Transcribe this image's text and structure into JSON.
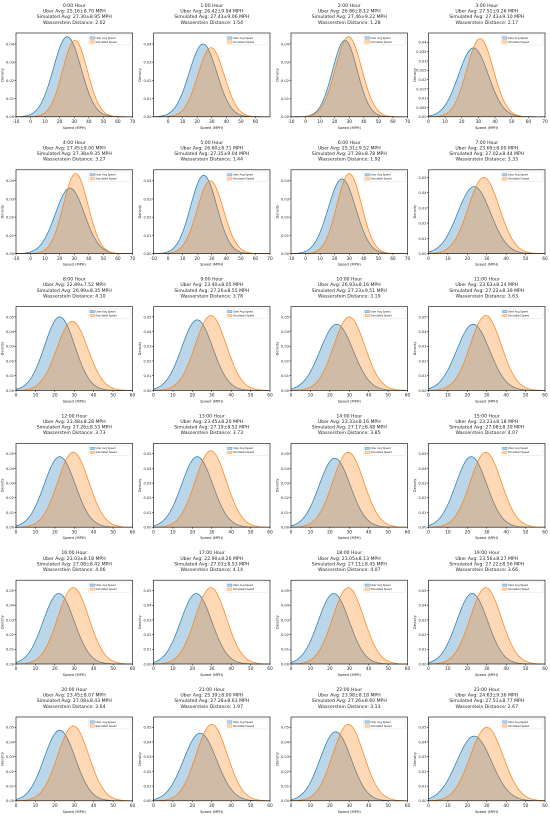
{
  "colors": {
    "uber": "#1f77b4",
    "sim": "#ff7f0e"
  },
  "figure": {
    "ylabel": "Density",
    "xlabel": "Speed (MPH)",
    "legend": [
      "Uber Avg Speed",
      "Simulated Speed"
    ]
  },
  "chart_data": [
    {
      "type": "area",
      "title_lines": [
        "0:00 Hour",
        "Uber Avg: 25.16±8.70 MPH",
        "Simulated Avg: 27.30±8.95 MPH",
        "Wasserstein Distance: 2.02"
      ],
      "xlim": [
        -10,
        70
      ],
      "ylim": [
        0,
        0.046
      ],
      "xticks": [
        -10,
        0,
        10,
        20,
        30,
        40,
        50,
        60,
        70
      ],
      "yticks": [
        0,
        0.01,
        0.02,
        0.03,
        0.04
      ],
      "series": [
        {
          "name": "Uber Avg Speed",
          "mean": 25.2,
          "sd": 9.5,
          "peak": 0.044
        },
        {
          "name": "Simulated Speed",
          "mean": 30.5,
          "sd": 8.5,
          "peak": 0.042
        }
      ]
    },
    {
      "type": "area",
      "title_lines": [
        "1:00 Hour",
        "Uber Avg: 26.42±9.94 MPH",
        "Simulated Avg: 27.43±9.06 MPH",
        "Wasserstein Distance: 1.54"
      ],
      "xlim": [
        -10,
        70
      ],
      "ylim": [
        0,
        0.046
      ],
      "xticks": [
        0,
        10,
        20,
        30,
        40,
        50,
        60
      ],
      "yticks": [
        0,
        0.01,
        0.02,
        0.03,
        0.04
      ],
      "series": [
        {
          "name": "Uber Avg Speed",
          "mean": 24.0,
          "sd": 9.5,
          "peak": 0.04
        },
        {
          "name": "Simulated Speed",
          "mean": 29.5,
          "sd": 9.0,
          "peak": 0.038
        }
      ]
    },
    {
      "type": "area",
      "title_lines": [
        "2:00 Hour",
        "Uber Avg: 26.86±8.12 MPH",
        "Simulated Avg: 27.46±9.22 MPH",
        "Wasserstein Distance: 1.28"
      ],
      "xlim": [
        -10,
        70
      ],
      "ylim": [
        0,
        0.046
      ],
      "xticks": [
        -10,
        0,
        10,
        20,
        30,
        40,
        50,
        60,
        70
      ],
      "yticks": [
        0,
        0.01,
        0.02,
        0.03,
        0.04
      ],
      "series": [
        {
          "name": "Uber Avg Speed",
          "mean": 27.0,
          "sd": 8.5,
          "peak": 0.042
        },
        {
          "name": "Simulated Speed",
          "mean": 29.5,
          "sd": 9.0,
          "peak": 0.044
        }
      ]
    },
    {
      "type": "area",
      "title_lines": [
        "3:00 Hour",
        "Uber Avg: 27.51±9.26 MPH",
        "Simulated Avg: 27.43±9.10 MPH",
        "Wasserstein Distance: 2.17"
      ],
      "xlim": [
        0,
        70
      ],
      "ylim": [
        0,
        0.045
      ],
      "xticks": [
        0,
        10,
        20,
        30,
        40,
        50,
        60,
        70
      ],
      "yticks": [
        0,
        0.005,
        0.01,
        0.015,
        0.02,
        0.025,
        0.03,
        0.035,
        0.04
      ],
      "series": [
        {
          "name": "Uber Avg Speed",
          "mean": 27.0,
          "sd": 9.0,
          "peak": 0.037
        },
        {
          "name": "Simulated Speed",
          "mean": 31.0,
          "sd": 8.0,
          "peak": 0.042
        }
      ]
    },
    {
      "type": "area",
      "title_lines": [
        "4:00 Hour",
        "Uber Avg: 27.45±9.00 MPH",
        "Simulated Avg: 27.38±9.35 MPH",
        "Wasserstein Distance: 3.27"
      ],
      "xlim": [
        -10,
        70
      ],
      "ylim": [
        0,
        0.046
      ],
      "xticks": [
        -10,
        0,
        10,
        20,
        30,
        40,
        50,
        60,
        70
      ],
      "yticks": [
        0,
        0.01,
        0.02,
        0.03,
        0.04
      ],
      "series": [
        {
          "name": "Uber Avg Speed",
          "mean": 27.0,
          "sd": 10.0,
          "peak": 0.036
        },
        {
          "name": "Simulated Speed",
          "mean": 31.0,
          "sd": 8.5,
          "peak": 0.044
        }
      ]
    },
    {
      "type": "area",
      "title_lines": [
        "5:00 Hour",
        "Uber Avg: 26.60±8.71 MPH",
        "Simulated Avg: 27.35±9.04 MPH",
        "Wasserstein Distance: 1.44"
      ],
      "xlim": [
        -10,
        70
      ],
      "ylim": [
        0,
        0.046
      ],
      "xticks": [
        -10,
        0,
        10,
        20,
        30,
        40,
        50,
        60,
        70
      ],
      "yticks": [
        0,
        0.01,
        0.02,
        0.03,
        0.04
      ],
      "series": [
        {
          "name": "Uber Avg Speed",
          "mean": 24.5,
          "sd": 9.0,
          "peak": 0.043
        },
        {
          "name": "Simulated Speed",
          "mean": 29.0,
          "sd": 9.0,
          "peak": 0.04
        }
      ]
    },
    {
      "type": "area",
      "title_lines": [
        "6:00 Hour",
        "Uber Avg: 25.31±9.52 MPH",
        "Simulated Avg: 27.28±8.78 MPH",
        "Wasserstein Distance: 1.92"
      ],
      "xlim": [
        -10,
        70
      ],
      "ylim": [
        0,
        0.046
      ],
      "xticks": [
        -10,
        0,
        10,
        20,
        30,
        40,
        50,
        60,
        70
      ],
      "yticks": [
        0,
        0.01,
        0.02,
        0.03,
        0.04
      ],
      "series": [
        {
          "name": "Uber Avg Speed",
          "mean": 25.0,
          "sd": 9.5,
          "peak": 0.041
        },
        {
          "name": "Simulated Speed",
          "mean": 30.0,
          "sd": 8.5,
          "peak": 0.044
        }
      ]
    },
    {
      "type": "area",
      "title_lines": [
        "7:00 Hour",
        "Uber Avg: 23.69±8.00 MPH",
        "Simulated Avg: 27.02±8.44 MPH",
        "Wasserstein Distance: 3.33"
      ],
      "xlim": [
        0,
        60
      ],
      "ylim": [
        0,
        0.055
      ],
      "xticks": [
        0,
        10,
        20,
        30,
        40,
        50,
        60
      ],
      "yticks": [
        0,
        0.01,
        0.02,
        0.03,
        0.04,
        0.05
      ],
      "series": [
        {
          "name": "Uber Avg Speed",
          "mean": 23.5,
          "sd": 8.5,
          "peak": 0.044
        },
        {
          "name": "Simulated Speed",
          "mean": 28.5,
          "sd": 8.0,
          "peak": 0.05
        }
      ]
    },
    {
      "type": "area",
      "title_lines": [
        "8:00 Hour",
        "Uber Avg: 22.89±7.52 MPH",
        "Simulated Avg: 26.99±8.35 MPH",
        "Wasserstein Distance: 4.10"
      ],
      "xlim": [
        0,
        60
      ],
      "ylim": [
        0,
        0.057
      ],
      "xticks": [
        0,
        10,
        20,
        30,
        40,
        50,
        60
      ],
      "yticks": [
        0,
        0.01,
        0.02,
        0.03,
        0.04,
        0.05
      ],
      "series": [
        {
          "name": "Uber Avg Speed",
          "mean": 22.5,
          "sd": 7.8,
          "peak": 0.05
        },
        {
          "name": "Simulated Speed",
          "mean": 29.0,
          "sd": 8.0,
          "peak": 0.047
        }
      ]
    },
    {
      "type": "area",
      "title_lines": [
        "9:00 Hour",
        "Uber Avg: 23.40±8.05 MPH",
        "Simulated Avg: 27.26±8.55 MPH",
        "Wasserstein Distance: 3.78"
      ],
      "xlim": [
        0,
        60
      ],
      "ylim": [
        0,
        0.057
      ],
      "xticks": [
        0,
        10,
        20,
        30,
        40,
        50,
        60
      ],
      "yticks": [
        0,
        0.01,
        0.02,
        0.03,
        0.04,
        0.05
      ],
      "series": [
        {
          "name": "Uber Avg Speed",
          "mean": 22.5,
          "sd": 8.0,
          "peak": 0.048
        },
        {
          "name": "Simulated Speed",
          "mean": 29.5,
          "sd": 8.0,
          "peak": 0.051
        }
      ]
    },
    {
      "type": "area",
      "title_lines": [
        "10:00 Hour",
        "Uber Avg: 26.93±8.16 MPH",
        "Simulated Avg: 27.23±9.51 MPH",
        "Wasserstein Distance: 3.19"
      ],
      "xlim": [
        0,
        60
      ],
      "ylim": [
        0,
        0.057
      ],
      "xticks": [
        0,
        10,
        20,
        30,
        40,
        50,
        60
      ],
      "yticks": [
        0,
        0.01,
        0.02,
        0.03,
        0.04,
        0.05
      ],
      "series": [
        {
          "name": "Uber Avg Speed",
          "mean": 23.5,
          "sd": 8.5,
          "peak": 0.045
        },
        {
          "name": "Simulated Speed",
          "mean": 30.0,
          "sd": 8.0,
          "peak": 0.05
        }
      ]
    },
    {
      "type": "area",
      "title_lines": [
        "11:00 Hour",
        "Uber Avg: 23.63±8.24 MPH",
        "Simulated Avg: 27.22±8.39 MPH",
        "Wasserstein Distance: 3.63"
      ],
      "xlim": [
        0,
        60
      ],
      "ylim": [
        0,
        0.057
      ],
      "xticks": [
        0,
        10,
        20,
        30,
        40,
        50,
        60
      ],
      "yticks": [
        0,
        0.01,
        0.02,
        0.03,
        0.04,
        0.05
      ],
      "series": [
        {
          "name": "Uber Avg Speed",
          "mean": 23.0,
          "sd": 8.5,
          "peak": 0.045
        },
        {
          "name": "Simulated Speed",
          "mean": 29.5,
          "sd": 8.0,
          "peak": 0.051
        }
      ]
    },
    {
      "type": "area",
      "title_lines": [
        "12:00 Hour",
        "Uber Avg: 23.48±8.28 MPH",
        "Simulated Avg: 27.26±8.53 MPH",
        "Wasserstein Distance: 3.73"
      ],
      "xlim": [
        0,
        60
      ],
      "ylim": [
        0,
        0.057
      ],
      "xticks": [
        0,
        10,
        20,
        30,
        40,
        50,
        60
      ],
      "yticks": [
        0,
        0.01,
        0.02,
        0.03,
        0.04,
        0.05
      ],
      "series": [
        {
          "name": "Uber Avg Speed",
          "mean": 22.5,
          "sd": 8.0,
          "peak": 0.048
        },
        {
          "name": "Simulated Speed",
          "mean": 29.5,
          "sd": 8.0,
          "peak": 0.051
        }
      ]
    },
    {
      "type": "area",
      "title_lines": [
        "13:00 Hour",
        "Uber Avg: 23.45±8.20 MPH",
        "Simulated Avg: 27.19±8.52 MPH",
        "Wasserstein Distance: 3.73"
      ],
      "xlim": [
        0,
        60
      ],
      "ylim": [
        0,
        0.057
      ],
      "xticks": [
        0,
        10,
        20,
        30,
        40,
        50,
        60
      ],
      "yticks": [
        0,
        0.01,
        0.02,
        0.03,
        0.04,
        0.05
      ],
      "series": [
        {
          "name": "Uber Avg Speed",
          "mean": 22.5,
          "sd": 8.0,
          "peak": 0.048
        },
        {
          "name": "Simulated Speed",
          "mean": 29.5,
          "sd": 8.0,
          "peak": 0.052
        }
      ]
    },
    {
      "type": "area",
      "title_lines": [
        "14:00 Hour",
        "Uber Avg: 23.33±8.16 MPH",
        "Simulated Avg: 27.17±8.48 MPH",
        "Wasserstein Distance: 3.85"
      ],
      "xlim": [
        0,
        60
      ],
      "ylim": [
        0,
        0.057
      ],
      "xticks": [
        0,
        10,
        20,
        30,
        40,
        50,
        60
      ],
      "yticks": [
        0,
        0.01,
        0.02,
        0.03,
        0.04,
        0.05
      ],
      "series": [
        {
          "name": "Uber Avg Speed",
          "mean": 22.5,
          "sd": 8.0,
          "peak": 0.047
        },
        {
          "name": "Simulated Speed",
          "mean": 29.5,
          "sd": 8.0,
          "peak": 0.051
        }
      ]
    },
    {
      "type": "area",
      "title_lines": [
        "15:00 Hour",
        "Uber Avg: 23.23±8.18 MPH",
        "Simulated Avg: 27.08±8.39 MPH",
        "Wasserstein Distance: 4.07"
      ],
      "xlim": [
        0,
        60
      ],
      "ylim": [
        0,
        0.057
      ],
      "xticks": [
        0,
        10,
        20,
        30,
        40,
        50,
        60
      ],
      "yticks": [
        0,
        0.01,
        0.02,
        0.03,
        0.04,
        0.05
      ],
      "series": [
        {
          "name": "Uber Avg Speed",
          "mean": 22.0,
          "sd": 8.0,
          "peak": 0.048
        },
        {
          "name": "Simulated Speed",
          "mean": 29.5,
          "sd": 8.0,
          "peak": 0.051
        }
      ]
    },
    {
      "type": "area",
      "title_lines": [
        "16:00 Hour",
        "Uber Avg: 23.03±8.18 MPH",
        "Simulated Avg: 27.08±8.42 MPH",
        "Wasserstein Distance: 4.06"
      ],
      "xlim": [
        0,
        60
      ],
      "ylim": [
        0,
        0.057
      ],
      "xticks": [
        0,
        10,
        20,
        30,
        40,
        50,
        60
      ],
      "yticks": [
        0,
        0.01,
        0.02,
        0.03,
        0.04,
        0.05
      ],
      "series": [
        {
          "name": "Uber Avg Speed",
          "mean": 22.0,
          "sd": 8.0,
          "peak": 0.048
        },
        {
          "name": "Simulated Speed",
          "mean": 29.5,
          "sd": 8.0,
          "peak": 0.052
        }
      ]
    },
    {
      "type": "area",
      "title_lines": [
        "17:00 Hour",
        "Uber Avg: 22.90±8.26 MPH",
        "Simulated Avg: 27.03±8.53 MPH",
        "Wasserstein Distance: 4.14"
      ],
      "xlim": [
        0,
        60
      ],
      "ylim": [
        0,
        0.057
      ],
      "xticks": [
        0,
        10,
        20,
        30,
        40,
        50,
        60
      ],
      "yticks": [
        0,
        0.01,
        0.02,
        0.03,
        0.04,
        0.05
      ],
      "series": [
        {
          "name": "Uber Avg Speed",
          "mean": 22.0,
          "sd": 8.0,
          "peak": 0.048
        },
        {
          "name": "Simulated Speed",
          "mean": 29.5,
          "sd": 8.0,
          "peak": 0.052
        }
      ]
    },
    {
      "type": "area",
      "title_lines": [
        "18:00 Hour",
        "Uber Avg: 23.05±8.13 MPH",
        "Simulated Avg: 27.11±8.45 MPH",
        "Wasserstein Distance: 4.07"
      ],
      "xlim": [
        0,
        60
      ],
      "ylim": [
        0,
        0.057
      ],
      "xticks": [
        0,
        10,
        20,
        30,
        40,
        50,
        60
      ],
      "yticks": [
        0,
        0.01,
        0.02,
        0.03,
        0.04,
        0.05
      ],
      "series": [
        {
          "name": "Uber Avg Speed",
          "mean": 22.0,
          "sd": 8.0,
          "peak": 0.048
        },
        {
          "name": "Simulated Speed",
          "mean": 29.5,
          "sd": 8.0,
          "peak": 0.052
        }
      ]
    },
    {
      "type": "area",
      "title_lines": [
        "19:00 Hour",
        "Uber Avg: 23.56±8.27 MPH",
        "Simulated Avg: 27.22±8.56 MPH",
        "Wasserstein Distance: 3.66"
      ],
      "xlim": [
        0,
        60
      ],
      "ylim": [
        0,
        0.057
      ],
      "xticks": [
        0,
        10,
        20,
        30,
        40,
        50,
        60
      ],
      "yticks": [
        0,
        0.01,
        0.02,
        0.03,
        0.04,
        0.05
      ],
      "series": [
        {
          "name": "Uber Avg Speed",
          "mean": 22.5,
          "sd": 8.0,
          "peak": 0.048
        },
        {
          "name": "Simulated Speed",
          "mean": 29.5,
          "sd": 8.0,
          "peak": 0.052
        }
      ]
    },
    {
      "type": "area",
      "title_lines": [
        "20:00 Hour",
        "Uber Avg: 23.45±8.07 MPH",
        "Simulated Avg: 27.08±8.43 MPH",
        "Wasserstein Distance: 3.64"
      ],
      "xlim": [
        0,
        60
      ],
      "ylim": [
        0,
        0.057
      ],
      "xticks": [
        0,
        10,
        20,
        30,
        40,
        50,
        60
      ],
      "yticks": [
        0,
        0.01,
        0.02,
        0.03,
        0.04,
        0.05
      ],
      "series": [
        {
          "name": "Uber Avg Speed",
          "mean": 22.5,
          "sd": 8.0,
          "peak": 0.048
        },
        {
          "name": "Simulated Speed",
          "mean": 29.5,
          "sd": 8.0,
          "peak": 0.051
        }
      ]
    },
    {
      "type": "area",
      "title_lines": [
        "21:00 Hour",
        "Uber Avg: 25.39±8.00 MPH",
        "Simulated Avg: 27.28±8.63 MPH",
        "Wasserstein Distance: 1.97"
      ],
      "xlim": [
        0,
        60
      ],
      "ylim": [
        0,
        0.057
      ],
      "xticks": [
        0,
        10,
        20,
        30,
        40,
        50,
        60
      ],
      "yticks": [
        0,
        0.01,
        0.02,
        0.03,
        0.04,
        0.05
      ],
      "series": [
        {
          "name": "Uber Avg Speed",
          "mean": 24.0,
          "sd": 8.5,
          "peak": 0.046
        },
        {
          "name": "Simulated Speed",
          "mean": 30.0,
          "sd": 8.0,
          "peak": 0.052
        }
      ]
    },
    {
      "type": "area",
      "title_lines": [
        "22:00 Hour",
        "Uber Avg: 23.98±8.18 MPH",
        "Simulated Avg: 27.26±8.60 MPH",
        "Wasserstein Distance: 3.13"
      ],
      "xlim": [
        0,
        60
      ],
      "ylim": [
        0,
        0.057
      ],
      "xticks": [
        0,
        10,
        20,
        30,
        40,
        50,
        60
      ],
      "yticks": [
        0,
        0.01,
        0.02,
        0.03,
        0.04,
        0.05
      ],
      "series": [
        {
          "name": "Uber Avg Speed",
          "mean": 23.0,
          "sd": 8.0,
          "peak": 0.047
        },
        {
          "name": "Simulated Speed",
          "mean": 29.5,
          "sd": 8.0,
          "peak": 0.052
        }
      ]
    },
    {
      "type": "area",
      "title_lines": [
        "23:00 Hour",
        "Uber Avg: 24.63±9.36 MPH",
        "Simulated Avg: 27.51±8.77 MPH",
        "Wasserstein Distance: 2.67"
      ],
      "xlim": [
        0,
        60
      ],
      "ylim": [
        0,
        0.057
      ],
      "xticks": [
        0,
        10,
        20,
        30,
        40,
        50,
        60
      ],
      "yticks": [
        0,
        0.01,
        0.02,
        0.03,
        0.04,
        0.05
      ],
      "series": [
        {
          "name": "Uber Avg Speed",
          "mean": 23.5,
          "sd": 9.0,
          "peak": 0.044
        },
        {
          "name": "Simulated Speed",
          "mean": 30.0,
          "sd": 8.5,
          "peak": 0.05
        }
      ]
    }
  ]
}
